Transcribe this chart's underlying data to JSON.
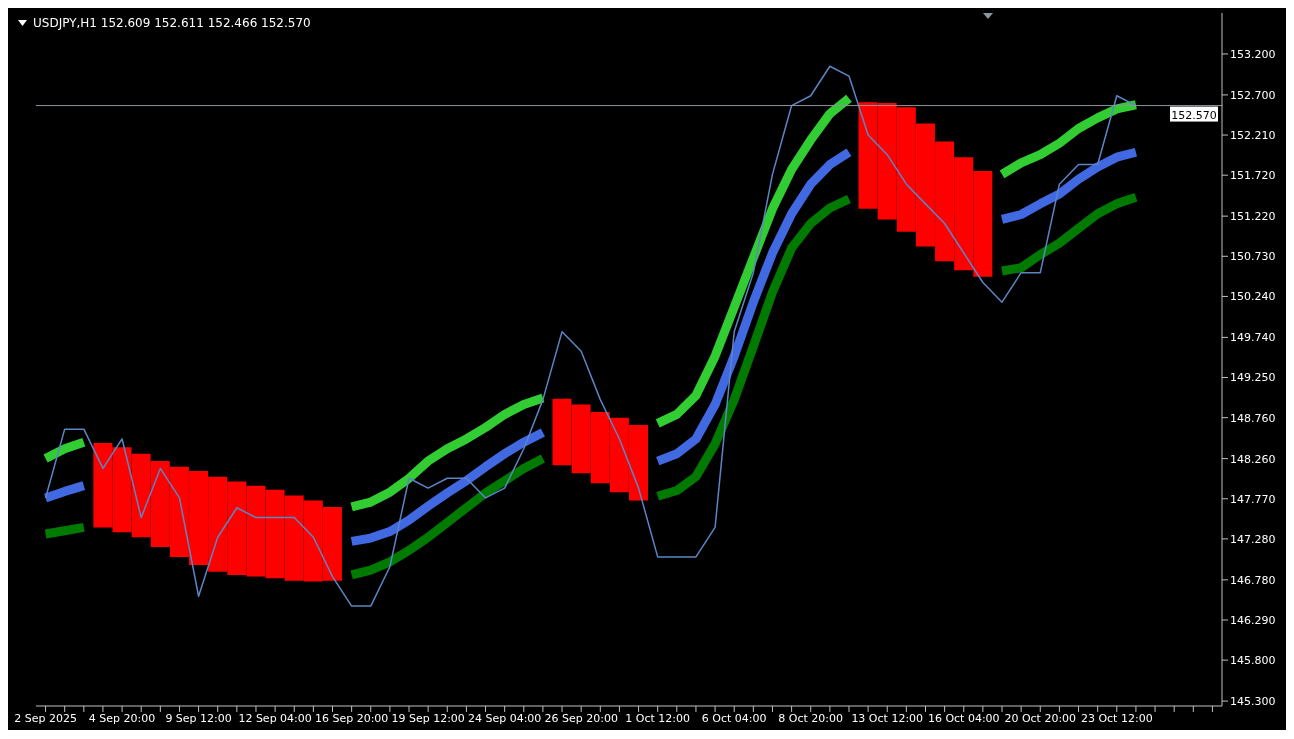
{
  "chart_data": {
    "type": "line",
    "title": "USDJPY,H1  152.609 152.611 152.466 152.570",
    "categories": [
      "2 Sep 2025",
      null,
      null,
      null,
      "4 Sep 20:00",
      null,
      null,
      null,
      "9 Sep 12:00",
      null,
      null,
      null,
      "12 Sep 04:00",
      null,
      null,
      null,
      "16 Sep 20:00",
      null,
      null,
      null,
      "19 Sep 12:00",
      null,
      null,
      null,
      "24 Sep 04:00",
      null,
      null,
      null,
      "26 Sep 20:00",
      null,
      null,
      null,
      "1 Oct 12:00",
      null,
      null,
      null,
      "6 Oct 04:00",
      null,
      null,
      null,
      "8 Oct 20:00",
      null,
      null,
      null,
      "13 Oct 12:00",
      null,
      null,
      null,
      "16 Oct 04:00",
      null,
      null,
      null,
      "20 Oct 20:00",
      null,
      null,
      null,
      "23 Oct 12:00",
      null,
      null,
      null,
      null,
      null
    ],
    "series": [
      {
        "color": "#5b86c5",
        "values": [
          147.78,
          148.62,
          148.62,
          148.14,
          148.5,
          147.54,
          148.14,
          147.78,
          146.58,
          147.3,
          147.66,
          147.54,
          147.54,
          147.54,
          147.3,
          146.82,
          146.46,
          146.46,
          146.94,
          148.02,
          147.9,
          148.02,
          148.02,
          147.78,
          147.9,
          148.38,
          148.98,
          149.81,
          149.57,
          148.98,
          148.5,
          147.9,
          147.06,
          147.06,
          147.06,
          147.42,
          149.81,
          150.53,
          151.73,
          152.57,
          152.69,
          153.05,
          152.93,
          152.21,
          151.97,
          151.61,
          151.37,
          151.13,
          150.77,
          150.41,
          150.17,
          150.53,
          150.53,
          151.61,
          151.85,
          151.85,
          152.69,
          152.57,
          null,
          null,
          null,
          null
        ]
      },
      {
        "type": "bar",
        "color": "#ff0000",
        "base": [
          null,
          null,
          null,
          147.42,
          147.36,
          147.3,
          147.18,
          147.06,
          146.96,
          146.88,
          146.84,
          146.82,
          146.8,
          146.77,
          146.76,
          146.77,
          null,
          null,
          null,
          null,
          null,
          null,
          null,
          null,
          null,
          null,
          null,
          148.18,
          148.08,
          147.96,
          147.85,
          147.75,
          null,
          null,
          null,
          null,
          null,
          null,
          null,
          null,
          null,
          null,
          null,
          151.31,
          151.18,
          151.03,
          150.85,
          150.67,
          150.56,
          150.48,
          null,
          null,
          null,
          null,
          null,
          null,
          null,
          null,
          null,
          null,
          null,
          null
        ],
        "values": [
          null,
          null,
          null,
          1.03,
          1.04,
          1.02,
          1.05,
          1.1,
          1.15,
          1.16,
          1.14,
          1.11,
          1.08,
          1.04,
          0.99,
          0.9,
          null,
          null,
          null,
          null,
          null,
          null,
          null,
          null,
          null,
          null,
          null,
          0.81,
          0.84,
          0.87,
          0.91,
          0.92,
          null,
          null,
          null,
          null,
          null,
          null,
          null,
          null,
          null,
          null,
          null,
          1.3,
          1.42,
          1.52,
          1.5,
          1.46,
          1.38,
          1.29,
          null,
          null,
          null,
          null,
          null,
          null,
          null,
          null,
          null,
          null,
          null,
          null
        ]
      },
      {
        "color": "#32cd32",
        "values": [
          148.26,
          148.38,
          148.46,
          null,
          null,
          null,
          null,
          null,
          null,
          null,
          null,
          null,
          null,
          null,
          null,
          null,
          147.67,
          147.73,
          147.85,
          148.02,
          148.23,
          148.38,
          148.5,
          148.64,
          148.8,
          148.92,
          149.0,
          null,
          null,
          null,
          null,
          null,
          148.69,
          148.8,
          149.03,
          149.51,
          150.11,
          150.71,
          151.31,
          151.79,
          152.15,
          152.47,
          152.66,
          null,
          null,
          null,
          null,
          null,
          null,
          null,
          151.73,
          151.87,
          151.97,
          152.11,
          152.29,
          152.42,
          152.53,
          152.58,
          null,
          null,
          null,
          null
        ]
      },
      {
        "color": "#4169e1",
        "values": [
          147.78,
          147.86,
          147.93,
          null,
          null,
          null,
          null,
          null,
          null,
          null,
          null,
          null,
          null,
          null,
          null,
          null,
          147.25,
          147.29,
          147.37,
          147.51,
          147.68,
          147.84,
          147.99,
          148.16,
          148.32,
          148.46,
          148.58,
          null,
          null,
          null,
          null,
          null,
          148.23,
          148.32,
          148.5,
          148.92,
          149.51,
          150.17,
          150.77,
          151.25,
          151.61,
          151.85,
          152.0,
          null,
          null,
          null,
          null,
          null,
          null,
          null,
          151.18,
          151.24,
          151.37,
          151.49,
          151.67,
          151.82,
          151.94,
          152.0,
          null,
          null,
          null,
          null
        ]
      },
      {
        "color": "#007a00",
        "values": [
          147.34,
          147.38,
          147.42,
          null,
          null,
          null,
          null,
          null,
          null,
          null,
          null,
          null,
          null,
          null,
          null,
          null,
          146.84,
          146.9,
          147.0,
          147.14,
          147.3,
          147.48,
          147.66,
          147.84,
          147.99,
          148.14,
          148.26,
          null,
          null,
          null,
          null,
          null,
          147.8,
          147.87,
          148.04,
          148.44,
          148.98,
          149.63,
          150.29,
          150.83,
          151.13,
          151.32,
          151.43,
          null,
          null,
          null,
          null,
          null,
          null,
          null,
          150.55,
          150.59,
          150.75,
          150.89,
          151.07,
          151.25,
          151.37,
          151.45,
          null,
          null,
          null,
          null
        ]
      }
    ],
    "ylim": [
      145.24,
      153.7
    ],
    "yticks": [
      {
        "value": 145.3,
        "label": "145.300"
      },
      {
        "value": 145.8,
        "label": "145.800"
      },
      {
        "value": 146.29,
        "label": "146.290"
      },
      {
        "value": 146.78,
        "label": "146.780"
      },
      {
        "value": 147.28,
        "label": "147.280"
      },
      {
        "value": 147.77,
        "label": "147.770"
      },
      {
        "value": 148.26,
        "label": "148.260"
      },
      {
        "value": 148.76,
        "label": "148.760"
      },
      {
        "value": 149.25,
        "label": "149.250"
      },
      {
        "value": 149.74,
        "label": "149.740"
      },
      {
        "value": 150.24,
        "label": "150.240"
      },
      {
        "value": 150.73,
        "label": "150.730"
      },
      {
        "value": 151.22,
        "label": "151.220"
      },
      {
        "value": 151.72,
        "label": "151.720"
      },
      {
        "value": 152.21,
        "label": "152.210"
      },
      {
        "value": 152.7,
        "label": "152.700"
      },
      {
        "value": 153.2,
        "label": "153.200"
      }
    ],
    "ref_lines": [
      {
        "axis": "y",
        "value": 152.57,
        "label": "152.570",
        "color": "#8c96a0"
      }
    ],
    "grid": false
  }
}
